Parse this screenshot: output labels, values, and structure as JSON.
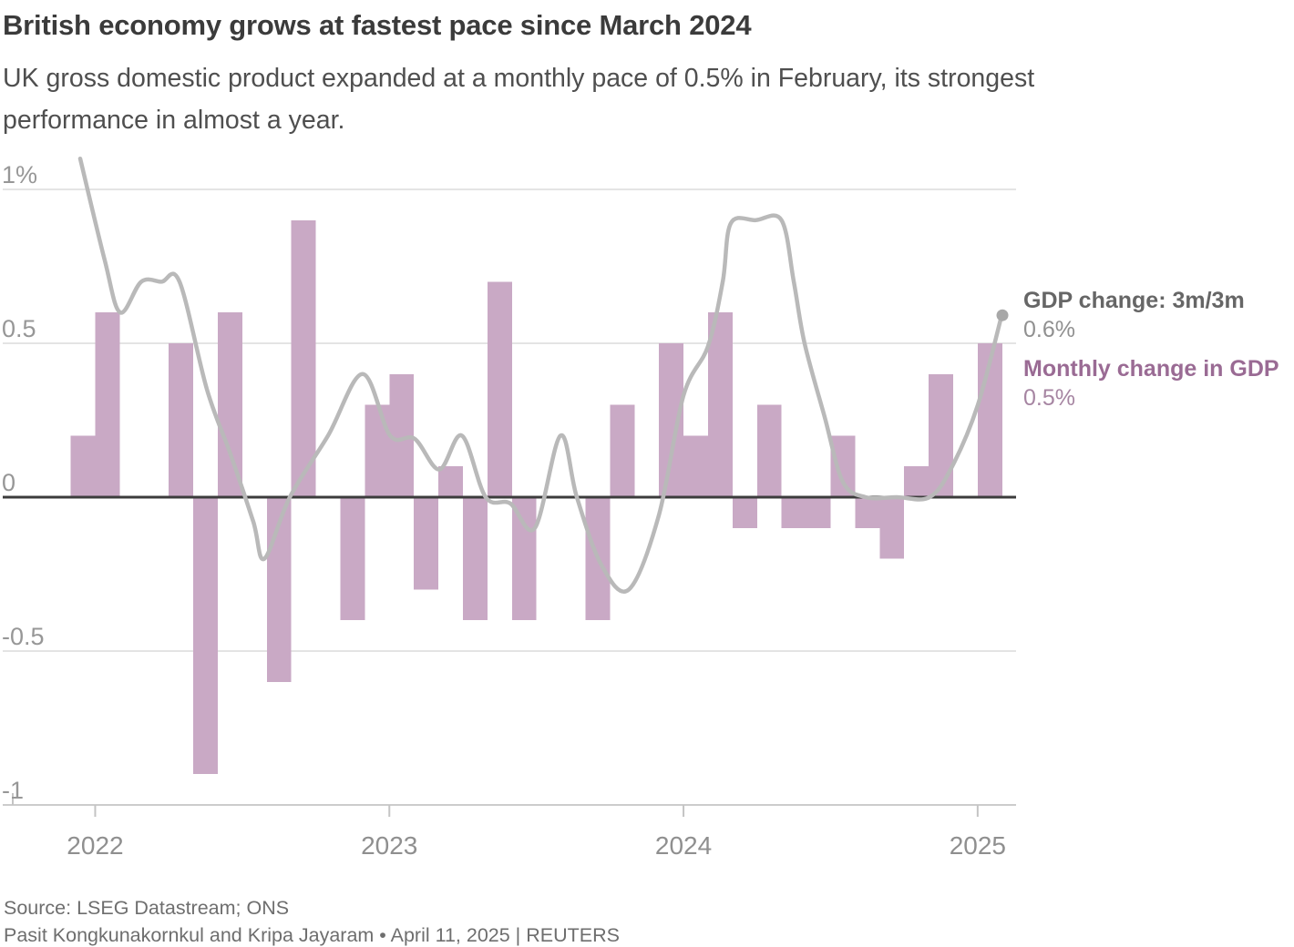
{
  "header": {
    "title": "British economy grows at fastest pace since March 2024",
    "subtitle": "UK gross domestic product expanded at a monthly pace of 0.5% in February, its strongest\nperformance in almost a year."
  },
  "legend": {
    "line_label": "GDP change: 3m/3m",
    "line_value": "0.6%",
    "bar_label": "Monthly change in GDP",
    "bar_value": "0.5%"
  },
  "footer": {
    "source": "Source: LSEG Datastream; ONS",
    "byline": "Pasit Kongkunakornkul and Kripa Jayaram • April 11, 2025 | REUTERS"
  },
  "colors": {
    "bar": "#c9a9c5",
    "line": "#b9b9b9",
    "dot": "#a8a8a8",
    "baseline": "#3c3c3c",
    "gridline": "#dcdcdc",
    "bottom_axis": "#cccccc",
    "tick": "#c4c4c4",
    "axis_text": "#979797"
  },
  "chart_data": {
    "type": "bar+line",
    "title": "British economy grows at fastest pace since March 2024",
    "bar_series_name": "Monthly change in GDP",
    "line_series_name": "GDP change: 3m/3m",
    "unit": "percent",
    "ylim": [
      -1,
      1.1
    ],
    "y_ticks": [
      {
        "label": "1%",
        "value": 1
      },
      {
        "label": "0.5",
        "value": 0.5
      },
      {
        "label": "0",
        "value": 0
      },
      {
        "label": "-0.5",
        "value": -0.5
      },
      {
        "label": "-1",
        "value": -1
      }
    ],
    "x_ticks": [
      {
        "label": "2022",
        "month_index": 0
      },
      {
        "label": "2023",
        "month_index": 12
      },
      {
        "label": "2024",
        "month_index": 24
      },
      {
        "label": "2025",
        "month_index": 36
      }
    ],
    "months": [
      "Jan 2022",
      "Feb 2022",
      "Mar 2022",
      "Apr 2022",
      "May 2022",
      "Jun 2022",
      "Jul 2022",
      "Aug 2022",
      "Sep 2022",
      "Oct 2022",
      "Nov 2022",
      "Dec 2022",
      "Jan 2023",
      "Feb 2023",
      "Mar 2023",
      "Apr 2023",
      "May 2023",
      "Jun 2023",
      "Jul 2023",
      "Aug 2023",
      "Sep 2023",
      "Oct 2023",
      "Nov 2023",
      "Dec 2023",
      "Jan 2024",
      "Feb 2024",
      "Mar 2024",
      "Apr 2024",
      "May 2024",
      "Jun 2024",
      "Jul 2024",
      "Aug 2024",
      "Sep 2024",
      "Oct 2024",
      "Nov 2024",
      "Dec 2024",
      "Jan 2025",
      "Feb 2025"
    ],
    "bar_values": [
      0.2,
      0.6,
      0,
      0,
      0.5,
      -0.9,
      0.6,
      0,
      -0.6,
      0.9,
      0,
      -0.4,
      0.3,
      0.4,
      -0.3,
      0.1,
      -0.4,
      0.7,
      -0.4,
      0,
      0,
      -0.4,
      0.3,
      0,
      0.5,
      0.2,
      0.6,
      -0.1,
      0.3,
      -0.1,
      -0.1,
      0.2,
      -0.1,
      -0.2,
      0.1,
      0.4,
      0,
      0.5
    ],
    "line_points": [
      [
        -0.11,
        1.1
      ],
      [
        0.89,
        0.77
      ],
      [
        1.52,
        0.6
      ],
      [
        2.38,
        0.7
      ],
      [
        3.2,
        0.7
      ],
      [
        3.94,
        0.7
      ],
      [
        5.06,
        0.35
      ],
      [
        6.02,
        0.14
      ],
      [
        6.95,
        -0.08
      ],
      [
        7.4,
        -0.2
      ],
      [
        8.44,
        0.0
      ],
      [
        10.0,
        0.2
      ],
      [
        11.41,
        0.4
      ],
      [
        12.53,
        0.2
      ],
      [
        13.53,
        0.19
      ],
      [
        14.54,
        0.09
      ],
      [
        15.46,
        0.2
      ],
      [
        16.43,
        0.0
      ],
      [
        17.43,
        -0.02
      ],
      [
        18.44,
        -0.1
      ],
      [
        19.48,
        0.2
      ],
      [
        20.15,
        0.0
      ],
      [
        21.15,
        -0.22
      ],
      [
        22.27,
        -0.3
      ],
      [
        23.49,
        -0.06
      ],
      [
        24.5,
        0.33
      ],
      [
        25.5,
        0.49
      ],
      [
        26.1,
        0.7
      ],
      [
        26.43,
        0.89
      ],
      [
        27.45,
        0.9
      ],
      [
        28.5,
        0.9
      ],
      [
        29.0,
        0.7
      ],
      [
        29.44,
        0.5
      ],
      [
        30.26,
        0.26
      ],
      [
        31.0,
        0.05
      ],
      [
        31.93,
        0.0
      ],
      [
        33.2,
        0.0
      ],
      [
        34.54,
        0.0
      ],
      [
        35.46,
        0.1
      ],
      [
        36.51,
        0.3
      ],
      [
        37.51,
        0.6
      ]
    ],
    "line_last_value": 0.6,
    "bar_last_value": 0.5
  }
}
